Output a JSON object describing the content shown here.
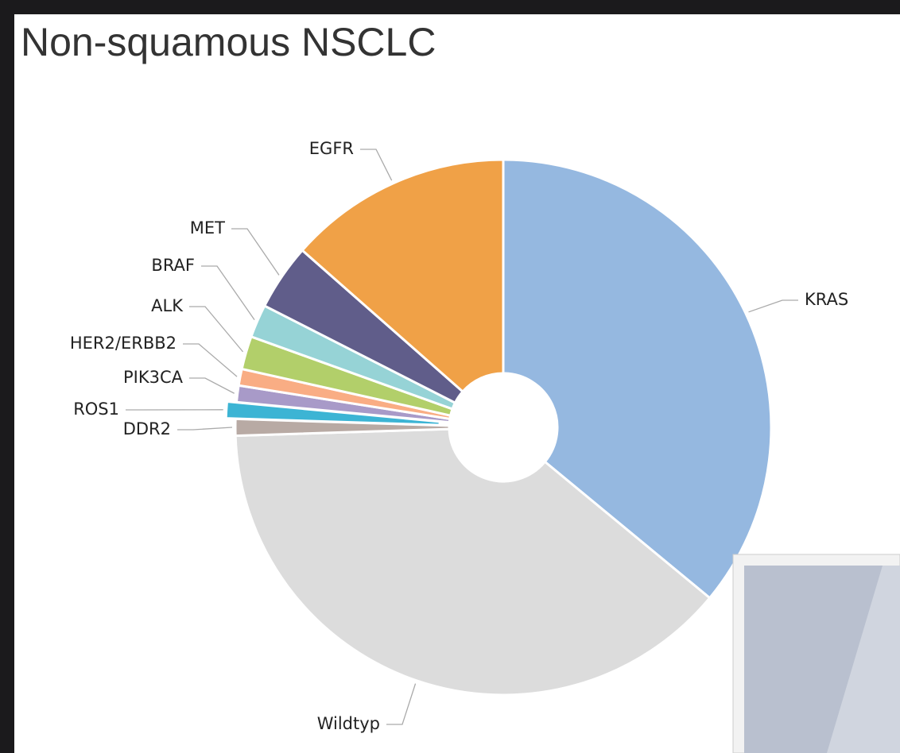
{
  "chart_data": {
    "type": "pie",
    "title": "Non-squamous NSCLC",
    "categories": [
      "KRAS",
      "Wildtyp",
      "DDR2",
      "ROS1",
      "PIK3CA",
      "HER2/ERBB2",
      "ALK",
      "BRAF",
      "MET",
      "EGFR"
    ],
    "values": [
      36,
      38.5,
      1,
      1,
      1,
      1,
      2,
      2,
      4,
      13.5
    ],
    "colors": [
      "#95b8e0",
      "#dcdcdc",
      "#b8aaa4",
      "#3cb4d4",
      "#a89ac8",
      "#f9ad84",
      "#b2cf6a",
      "#96d3d6",
      "#605d8a",
      "#f0a147"
    ],
    "exploded": [
      "ROS1"
    ]
  }
}
